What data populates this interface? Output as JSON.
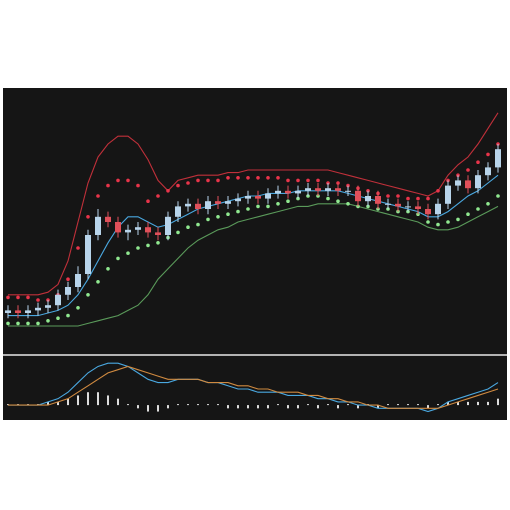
{
  "chart_data": [
    {
      "type": "candlestick",
      "ylim": [
        0,
        100
      ],
      "up_color": "#b8d4ea",
      "down_color": "#e0505a",
      "open": [
        15,
        16,
        15,
        16,
        17,
        18,
        22,
        25,
        30,
        45,
        52,
        50,
        46,
        47,
        48,
        46,
        45,
        52,
        56,
        57,
        55,
        58,
        57,
        58,
        59,
        60,
        59,
        61,
        62,
        61,
        62,
        63,
        62,
        63,
        62,
        62,
        58,
        60,
        57,
        57,
        56,
        56,
        55,
        53,
        57,
        64,
        66,
        63,
        68,
        71
      ],
      "high": [
        18,
        18,
        18,
        19,
        20,
        24,
        27,
        33,
        47,
        55,
        54,
        52,
        49,
        50,
        50,
        48,
        54,
        58,
        59,
        59,
        60,
        60,
        60,
        61,
        62,
        62,
        63,
        64,
        64,
        64,
        65,
        65,
        65,
        65,
        64,
        64,
        62,
        62,
        59,
        59,
        58,
        58,
        57,
        59,
        66,
        68,
        68,
        70,
        73,
        80
      ],
      "low": [
        13,
        13,
        13,
        14,
        15,
        16,
        20,
        23,
        28,
        43,
        48,
        44,
        43,
        45,
        44,
        43,
        43,
        50,
        54,
        53,
        53,
        55,
        55,
        56,
        57,
        57,
        57,
        59,
        59,
        59,
        60,
        60,
        60,
        60,
        60,
        56,
        56,
        55,
        55,
        54,
        54,
        53,
        51,
        51,
        55,
        62,
        61,
        61,
        66,
        69
      ],
      "close": [
        16,
        15,
        16,
        17,
        18,
        22,
        25,
        30,
        45,
        52,
        50,
        46,
        47,
        48,
        46,
        45,
        52,
        56,
        57,
        55,
        58,
        57,
        58,
        59,
        60,
        59,
        61,
        62,
        61,
        62,
        63,
        62,
        63,
        62,
        62,
        58,
        60,
        57,
        57,
        56,
        56,
        55,
        53,
        57,
        64,
        66,
        63,
        68,
        71,
        78
      ],
      "series": [
        {
          "style": "line",
          "color": "#c0303a",
          "values": [
            22,
            22,
            22,
            22,
            23,
            26,
            35,
            50,
            65,
            75,
            80,
            83,
            83,
            80,
            74,
            66,
            62,
            66,
            67,
            68,
            68,
            68,
            69,
            69,
            70,
            70,
            70,
            70,
            70,
            70,
            70,
            70,
            70,
            69,
            68,
            67,
            66,
            65,
            64,
            63,
            62,
            61,
            60,
            62,
            68,
            72,
            75,
            80,
            86,
            92
          ]
        },
        {
          "style": "line",
          "color": "#5a9a5a",
          "values": [
            10,
            10,
            10,
            10,
            10,
            10,
            10,
            10,
            11,
            12,
            13,
            14,
            16,
            18,
            22,
            28,
            32,
            36,
            40,
            43,
            45,
            47,
            48,
            50,
            51,
            52,
            53,
            54,
            55,
            56,
            56,
            57,
            57,
            57,
            57,
            56,
            55,
            54,
            53,
            52,
            51,
            50,
            48,
            47,
            47,
            48,
            50,
            52,
            54,
            56
          ]
        },
        {
          "style": "line",
          "color": "#4aa8e0",
          "values": [
            14,
            14,
            14,
            14,
            15,
            16,
            18,
            22,
            28,
            35,
            42,
            48,
            52,
            52,
            50,
            48,
            49,
            51,
            53,
            55,
            56,
            57,
            58,
            59,
            60,
            60,
            61,
            61,
            61,
            62,
            62,
            62,
            62,
            62,
            61,
            60,
            59,
            58,
            57,
            56,
            55,
            54,
            52,
            52,
            54,
            57,
            60,
            62,
            65,
            68
          ]
        },
        {
          "style": "dots",
          "color": "#e8344a",
          "values": [
            21,
            21,
            21,
            20,
            20,
            22,
            28,
            40,
            52,
            60,
            64,
            66,
            66,
            64,
            58,
            60,
            62,
            64,
            65,
            66,
            66,
            66,
            67,
            67,
            67,
            67,
            67,
            67,
            66,
            66,
            66,
            66,
            65,
            65,
            64,
            63,
            62,
            61,
            60,
            60,
            59,
            59,
            59,
            62,
            66,
            68,
            70,
            73,
            76,
            80
          ]
        },
        {
          "style": "dots",
          "color": "#90e890",
          "values": [
            11,
            11,
            11,
            11,
            12,
            13,
            14,
            17,
            22,
            27,
            32,
            36,
            38,
            40,
            41,
            42,
            44,
            46,
            48,
            49,
            51,
            52,
            53,
            54,
            55,
            56,
            56,
            57,
            58,
            59,
            60,
            60,
            59,
            58,
            57,
            56,
            56,
            55,
            55,
            54,
            54,
            53,
            50,
            49,
            50,
            51,
            53,
            55,
            57,
            60
          ]
        }
      ]
    },
    {
      "type": "macd",
      "ylim": [
        -4,
        14
      ],
      "hist_color": "#dddddd",
      "histogram": [
        0,
        0,
        0,
        0,
        1,
        1,
        2,
        3,
        4,
        4,
        3,
        2,
        0,
        -1,
        -2,
        -2,
        -1,
        0,
        0,
        0,
        0,
        0,
        -1,
        -1,
        -1,
        -1,
        -1,
        0,
        -1,
        -1,
        0,
        -1,
        0,
        -1,
        0,
        -1,
        0,
        -1,
        0,
        0,
        0,
        0,
        -1,
        0,
        1,
        1,
        1,
        1,
        1,
        2
      ],
      "series": [
        {
          "style": "line",
          "color": "#4aa8e0",
          "values": [
            0,
            0,
            0,
            0,
            1,
            2,
            4,
            7,
            10,
            12,
            13,
            13,
            12,
            10,
            8,
            7,
            7,
            8,
            8,
            8,
            7,
            7,
            6,
            5,
            5,
            4,
            4,
            4,
            3,
            3,
            3,
            2,
            2,
            1,
            1,
            0,
            0,
            -1,
            -1,
            -1,
            -1,
            -1,
            -2,
            -1,
            1,
            2,
            3,
            4,
            5,
            7
          ]
        },
        {
          "style": "line",
          "color": "#d08a40",
          "values": [
            0,
            0,
            0,
            0,
            0,
            1,
            2,
            4,
            6,
            8,
            10,
            11,
            12,
            11,
            10,
            9,
            8,
            8,
            8,
            8,
            7,
            7,
            7,
            6,
            6,
            5,
            5,
            4,
            4,
            4,
            3,
            3,
            2,
            2,
            1,
            1,
            0,
            0,
            -1,
            -1,
            -1,
            -1,
            -1,
            -1,
            0,
            1,
            2,
            3,
            4,
            5
          ]
        }
      ]
    }
  ]
}
